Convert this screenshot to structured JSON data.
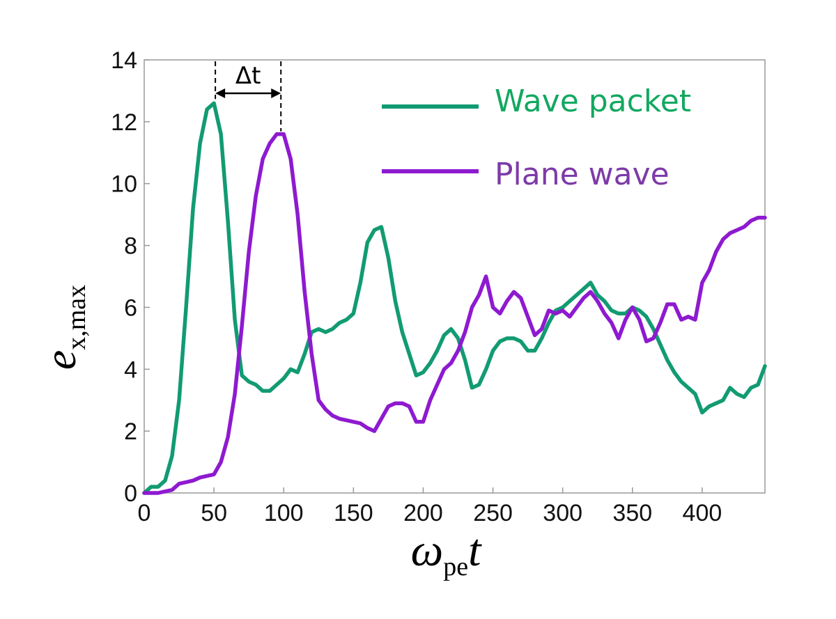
{
  "chart_data": {
    "type": "line",
    "title": "",
    "xlabel": {
      "main": "ω",
      "sub": "pe",
      "tail": "t"
    },
    "ylabel": {
      "main": "e",
      "sub": "x,max"
    },
    "xlim": [
      0,
      445
    ],
    "ylim": [
      0,
      14
    ],
    "xticks": [
      "0",
      "50",
      "100",
      "150",
      "200",
      "250",
      "300",
      "350",
      "400"
    ],
    "xtick_values": [
      0,
      50,
      100,
      150,
      200,
      250,
      300,
      350,
      400
    ],
    "yticks": [
      "0",
      "2",
      "4",
      "6",
      "8",
      "10",
      "12",
      "14"
    ],
    "ytick_values": [
      0,
      2,
      4,
      6,
      8,
      10,
      12,
      14
    ],
    "grid": false,
    "legend_position": "top-right",
    "annotation": {
      "label": "Δt",
      "from_x": 51,
      "to_x": 98
    },
    "series": [
      {
        "name": "Wave packet",
        "color": "#129b72",
        "x": [
          0,
          5,
          10,
          15,
          20,
          25,
          30,
          35,
          40,
          45,
          50,
          55,
          60,
          65,
          70,
          75,
          80,
          85,
          90,
          95,
          100,
          105,
          110,
          115,
          120,
          125,
          130,
          135,
          140,
          145,
          150,
          155,
          160,
          165,
          170,
          175,
          180,
          185,
          190,
          195,
          200,
          205,
          210,
          215,
          220,
          225,
          230,
          235,
          240,
          245,
          250,
          255,
          260,
          265,
          270,
          275,
          280,
          285,
          290,
          295,
          300,
          305,
          310,
          315,
          320,
          325,
          330,
          335,
          340,
          345,
          350,
          355,
          360,
          365,
          370,
          375,
          380,
          385,
          390,
          395,
          400,
          405,
          410,
          415,
          420,
          425,
          430,
          435,
          440,
          445
        ],
        "y": [
          0.0,
          0.2,
          0.2,
          0.4,
          1.2,
          3.0,
          6.0,
          9.2,
          11.3,
          12.4,
          12.6,
          11.6,
          8.8,
          5.6,
          3.8,
          3.6,
          3.5,
          3.3,
          3.3,
          3.5,
          3.7,
          4.0,
          3.9,
          4.5,
          5.2,
          5.3,
          5.2,
          5.3,
          5.5,
          5.6,
          5.8,
          6.8,
          8.1,
          8.5,
          8.6,
          7.6,
          6.2,
          5.2,
          4.5,
          3.8,
          3.9,
          4.2,
          4.6,
          5.1,
          5.3,
          5.0,
          4.3,
          3.4,
          3.5,
          4.0,
          4.6,
          4.9,
          5.0,
          5.0,
          4.9,
          4.6,
          4.6,
          5.0,
          5.5,
          5.9,
          6.0,
          6.2,
          6.4,
          6.6,
          6.8,
          6.4,
          6.2,
          5.9,
          5.8,
          5.8,
          6.0,
          5.9,
          5.7,
          5.3,
          4.8,
          4.3,
          3.9,
          3.6,
          3.4,
          3.2,
          2.6,
          2.8,
          2.9,
          3.0,
          3.4,
          3.2,
          3.1,
          3.4,
          3.5,
          4.1
        ]
      },
      {
        "name": "Plane wave",
        "color": "#8e1ad0",
        "x": [
          0,
          5,
          10,
          15,
          20,
          25,
          30,
          35,
          40,
          45,
          50,
          55,
          60,
          65,
          70,
          75,
          80,
          85,
          90,
          95,
          100,
          105,
          110,
          115,
          120,
          125,
          130,
          135,
          140,
          145,
          150,
          155,
          160,
          165,
          170,
          175,
          180,
          185,
          190,
          195,
          200,
          205,
          210,
          215,
          220,
          225,
          230,
          235,
          240,
          245,
          250,
          255,
          260,
          265,
          270,
          275,
          280,
          285,
          290,
          295,
          300,
          305,
          310,
          315,
          320,
          325,
          330,
          335,
          340,
          345,
          350,
          355,
          360,
          365,
          370,
          375,
          380,
          385,
          390,
          395,
          400,
          405,
          410,
          415,
          420,
          425,
          430,
          435,
          440,
          445
        ],
        "y": [
          0.0,
          0.0,
          0.0,
          0.05,
          0.1,
          0.3,
          0.35,
          0.4,
          0.5,
          0.55,
          0.6,
          1.0,
          1.8,
          3.2,
          5.4,
          7.8,
          9.6,
          10.8,
          11.3,
          11.6,
          11.6,
          10.8,
          9.0,
          6.5,
          4.5,
          3.0,
          2.7,
          2.5,
          2.4,
          2.35,
          2.3,
          2.25,
          2.1,
          2.0,
          2.4,
          2.8,
          2.9,
          2.9,
          2.8,
          2.3,
          2.3,
          3.0,
          3.5,
          4.0,
          4.2,
          4.6,
          5.2,
          6.0,
          6.4,
          7.0,
          6.0,
          5.8,
          6.2,
          6.5,
          6.3,
          5.7,
          5.1,
          5.3,
          5.9,
          5.8,
          5.9,
          5.7,
          6.0,
          6.3,
          6.5,
          6.2,
          5.8,
          5.5,
          5.0,
          5.6,
          6.0,
          5.6,
          4.9,
          5.0,
          5.5,
          6.1,
          6.1,
          5.6,
          5.7,
          5.6,
          6.8,
          7.2,
          7.8,
          8.2,
          8.4,
          8.5,
          8.6,
          8.8,
          8.9,
          8.9
        ]
      }
    ]
  },
  "legend": {
    "items": [
      {
        "label": "Wave packet",
        "color": "#12a860"
      },
      {
        "label": "Plane wave",
        "color": "#7d3aa8"
      }
    ]
  },
  "colors": {
    "axis": "#999999",
    "tick": "#111111"
  }
}
